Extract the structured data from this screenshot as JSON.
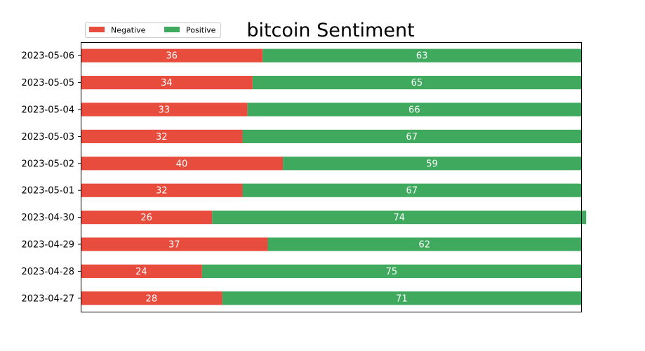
{
  "chart_data": {
    "type": "bar",
    "orientation": "horizontal",
    "stacked": true,
    "title": "bitcoin Sentiment",
    "xlabel": "",
    "ylabel": "",
    "xlim": [
      0,
      99
    ],
    "grid": false,
    "legend_position": "top-left",
    "categories": [
      "2023-05-06",
      "2023-05-05",
      "2023-05-04",
      "2023-05-03",
      "2023-05-02",
      "2023-05-01",
      "2023-04-30",
      "2023-04-29",
      "2023-04-28",
      "2023-04-27"
    ],
    "series": [
      {
        "name": "Negative",
        "color": "#e74c3c",
        "values": [
          36,
          34,
          33,
          32,
          40,
          32,
          26,
          37,
          24,
          28
        ]
      },
      {
        "name": "Positive",
        "color": "#3fa95e",
        "values": [
          63,
          65,
          66,
          67,
          59,
          67,
          74,
          62,
          75,
          71
        ]
      }
    ]
  }
}
